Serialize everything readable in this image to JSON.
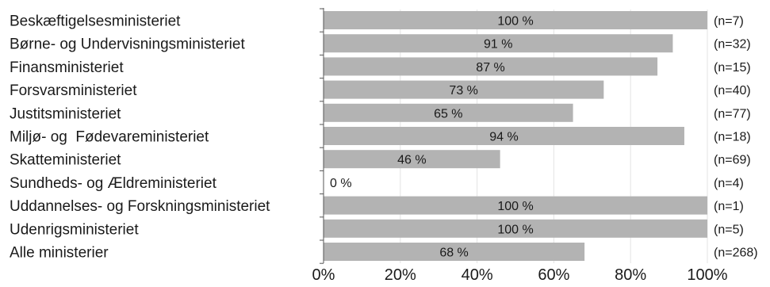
{
  "chart_data": {
    "type": "bar",
    "orientation": "horizontal",
    "categories": [
      "Beskæftigelsesministeriet",
      "Børne- og Undervisningsministeriet",
      "Finansministeriet",
      "Forsvarsministeriet",
      "Justitsministeriet",
      "Miljø- og  Fødevareministeriet",
      "Skatteministeriet",
      "Sundheds- og Ældreministeriet",
      "Uddannelses- og Forskningsministeriet",
      "Udenrigsministeriet",
      "Alle ministerier"
    ],
    "values": [
      100,
      91,
      87,
      73,
      65,
      94,
      46,
      0,
      100,
      100,
      68
    ],
    "value_labels": [
      "100 %",
      "91 %",
      "87 %",
      "73 %",
      "65 %",
      "94 %",
      "46 %",
      "0 %",
      "100 %",
      "100 %",
      "68 %"
    ],
    "n_labels": [
      "(n=7)",
      "(n=32)",
      "(n=15)",
      "(n=40)",
      "(n=77)",
      "(n=18)",
      "(n=69)",
      "(n=4)",
      "(n=1)",
      "(n=5)",
      "(n=268)"
    ],
    "xlim": [
      0,
      100
    ],
    "x_ticks": [
      0,
      20,
      40,
      60,
      80,
      100
    ],
    "x_tick_labels": [
      "0%",
      "20%",
      "40%",
      "60%",
      "80%",
      "100%"
    ],
    "grid": "vertical",
    "legend": "none",
    "bar_color": "#b3b3b3",
    "title": "",
    "xlabel": "",
    "ylabel": ""
  }
}
